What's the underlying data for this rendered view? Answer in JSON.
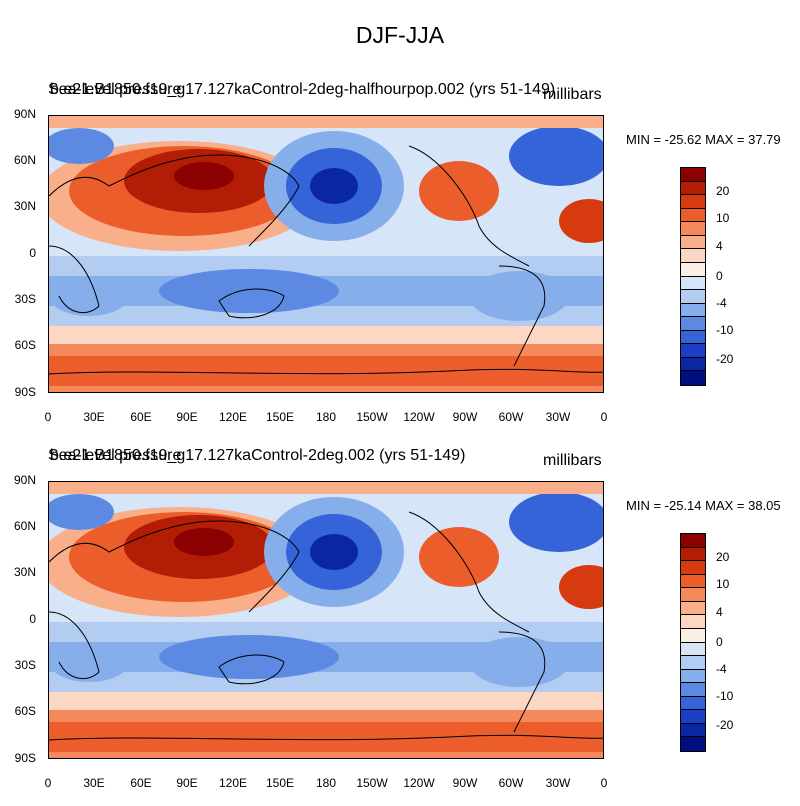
{
  "title": "DJF-JJA",
  "panels": [
    {
      "left_title": "Sea-level pressure",
      "case_title": "b.e21.B1850.f19_g17.127kaControl-2deg-halfhourpop.002 (yrs 51-149)",
      "units": "millibars",
      "min_max": "MIN = -25.62 MAX =  37.79"
    },
    {
      "left_title": "Sea-level pressure",
      "case_title": "b.e21.B1850.f19_g17.127kaControl-2deg.002 (yrs 51-149)",
      "units": "millibars",
      "min_max": "MIN = -25.14 MAX =  38.05"
    }
  ],
  "axes": {
    "lat_labels": [
      "90N",
      "60N",
      "30N",
      "0",
      "30S",
      "60S",
      "90S"
    ],
    "lon_labels": [
      "0",
      "30E",
      "60E",
      "90E",
      "120E",
      "150E",
      "180",
      "150W",
      "120W",
      "90W",
      "60W",
      "30W",
      "0"
    ]
  },
  "colorbar": {
    "labels": [
      "20",
      "10",
      "4",
      "0",
      "-4",
      "-10",
      "-20"
    ],
    "colors": [
      "#8b0000",
      "#b31d06",
      "#d83a10",
      "#ec5d2c",
      "#f5895b",
      "#f9b08a",
      "#fcd8c4",
      "#fbeee4",
      "#d6e5f7",
      "#b2cdf1",
      "#86aeea",
      "#5c8ae2",
      "#3563d8",
      "#1b3fc5",
      "#0a26a0",
      "#000e80"
    ]
  }
}
